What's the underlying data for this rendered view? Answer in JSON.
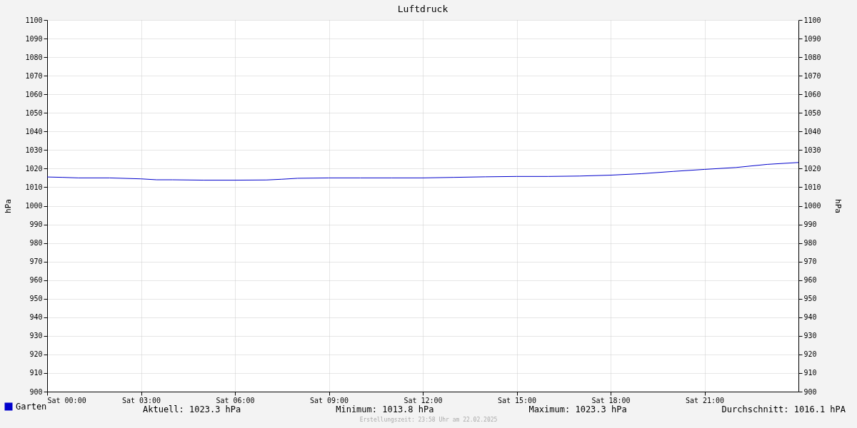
{
  "chart_data": {
    "type": "line",
    "title": "Luftdruck",
    "ylabel": "hPa",
    "y2label": "hPa",
    "x": [
      "2025-02-22T00:00",
      "2025-02-22T00:30",
      "2025-02-22T01:00",
      "2025-02-22T02:00",
      "2025-02-22T03:00",
      "2025-02-22T03:30",
      "2025-02-22T04:00",
      "2025-02-22T05:00",
      "2025-02-22T06:00",
      "2025-02-22T07:00",
      "2025-02-22T07:30",
      "2025-02-22T08:00",
      "2025-02-22T09:00",
      "2025-02-22T10:00",
      "2025-02-22T11:00",
      "2025-02-22T12:00",
      "2025-02-22T13:00",
      "2025-02-22T14:00",
      "2025-02-22T15:00",
      "2025-02-22T16:00",
      "2025-02-22T17:00",
      "2025-02-22T18:00",
      "2025-02-22T19:00",
      "2025-02-22T20:00",
      "2025-02-22T21:00",
      "2025-02-22T22:00",
      "2025-02-22T23:00",
      "2025-02-23T00:00"
    ],
    "series": [
      {
        "name": "Garten",
        "color": "#0000cc",
        "values": [
          1015.5,
          1015.3,
          1015.0,
          1015.0,
          1014.5,
          1014.0,
          1014.0,
          1013.8,
          1013.8,
          1013.9,
          1014.3,
          1014.8,
          1015.0,
          1015.0,
          1015.0,
          1015.0,
          1015.3,
          1015.6,
          1015.8,
          1015.8,
          1016.0,
          1016.5,
          1017.3,
          1018.5,
          1019.6,
          1020.6,
          1022.3,
          1023.3
        ]
      }
    ],
    "xlim": [
      "2025-02-22T00:00",
      "2025-02-23T00:00"
    ],
    "xticks": [
      {
        "value": "2025-02-22T00:00",
        "label": "Sat 00:00"
      },
      {
        "value": "2025-02-22T03:00",
        "label": "Sat 03:00"
      },
      {
        "value": "2025-02-22T06:00",
        "label": "Sat 06:00"
      },
      {
        "value": "2025-02-22T09:00",
        "label": "Sat 09:00"
      },
      {
        "value": "2025-02-22T12:00",
        "label": "Sat 12:00"
      },
      {
        "value": "2025-02-22T15:00",
        "label": "Sat 15:00"
      },
      {
        "value": "2025-02-22T18:00",
        "label": "Sat 18:00"
      },
      {
        "value": "2025-02-22T21:00",
        "label": "Sat 21:00"
      }
    ],
    "ylim": [
      900,
      1100
    ],
    "yticks": [
      900,
      910,
      920,
      930,
      940,
      950,
      960,
      970,
      980,
      990,
      1000,
      1010,
      1020,
      1030,
      1040,
      1050,
      1060,
      1070,
      1080,
      1090,
      1100
    ],
    "y2lim": [
      900,
      1100
    ],
    "y2ticks": [
      900,
      910,
      920,
      930,
      940,
      950,
      960,
      970,
      980,
      990,
      1000,
      1010,
      1020,
      1030,
      1040,
      1050,
      1060,
      1070,
      1080,
      1090,
      1100
    ],
    "grid": true,
    "legend": "bottom left",
    "line_style": "solid",
    "marker": "none",
    "annotations": [
      "Aktuell: 1023.3 hPa",
      "Minimum: 1013.8 hPa",
      "Maximum: 1023.3 hPa",
      "Durchschnitt: 1016.1 hPA",
      "Erstellungszeit: 23:58 Uhr am 22.02.2025"
    ]
  }
}
